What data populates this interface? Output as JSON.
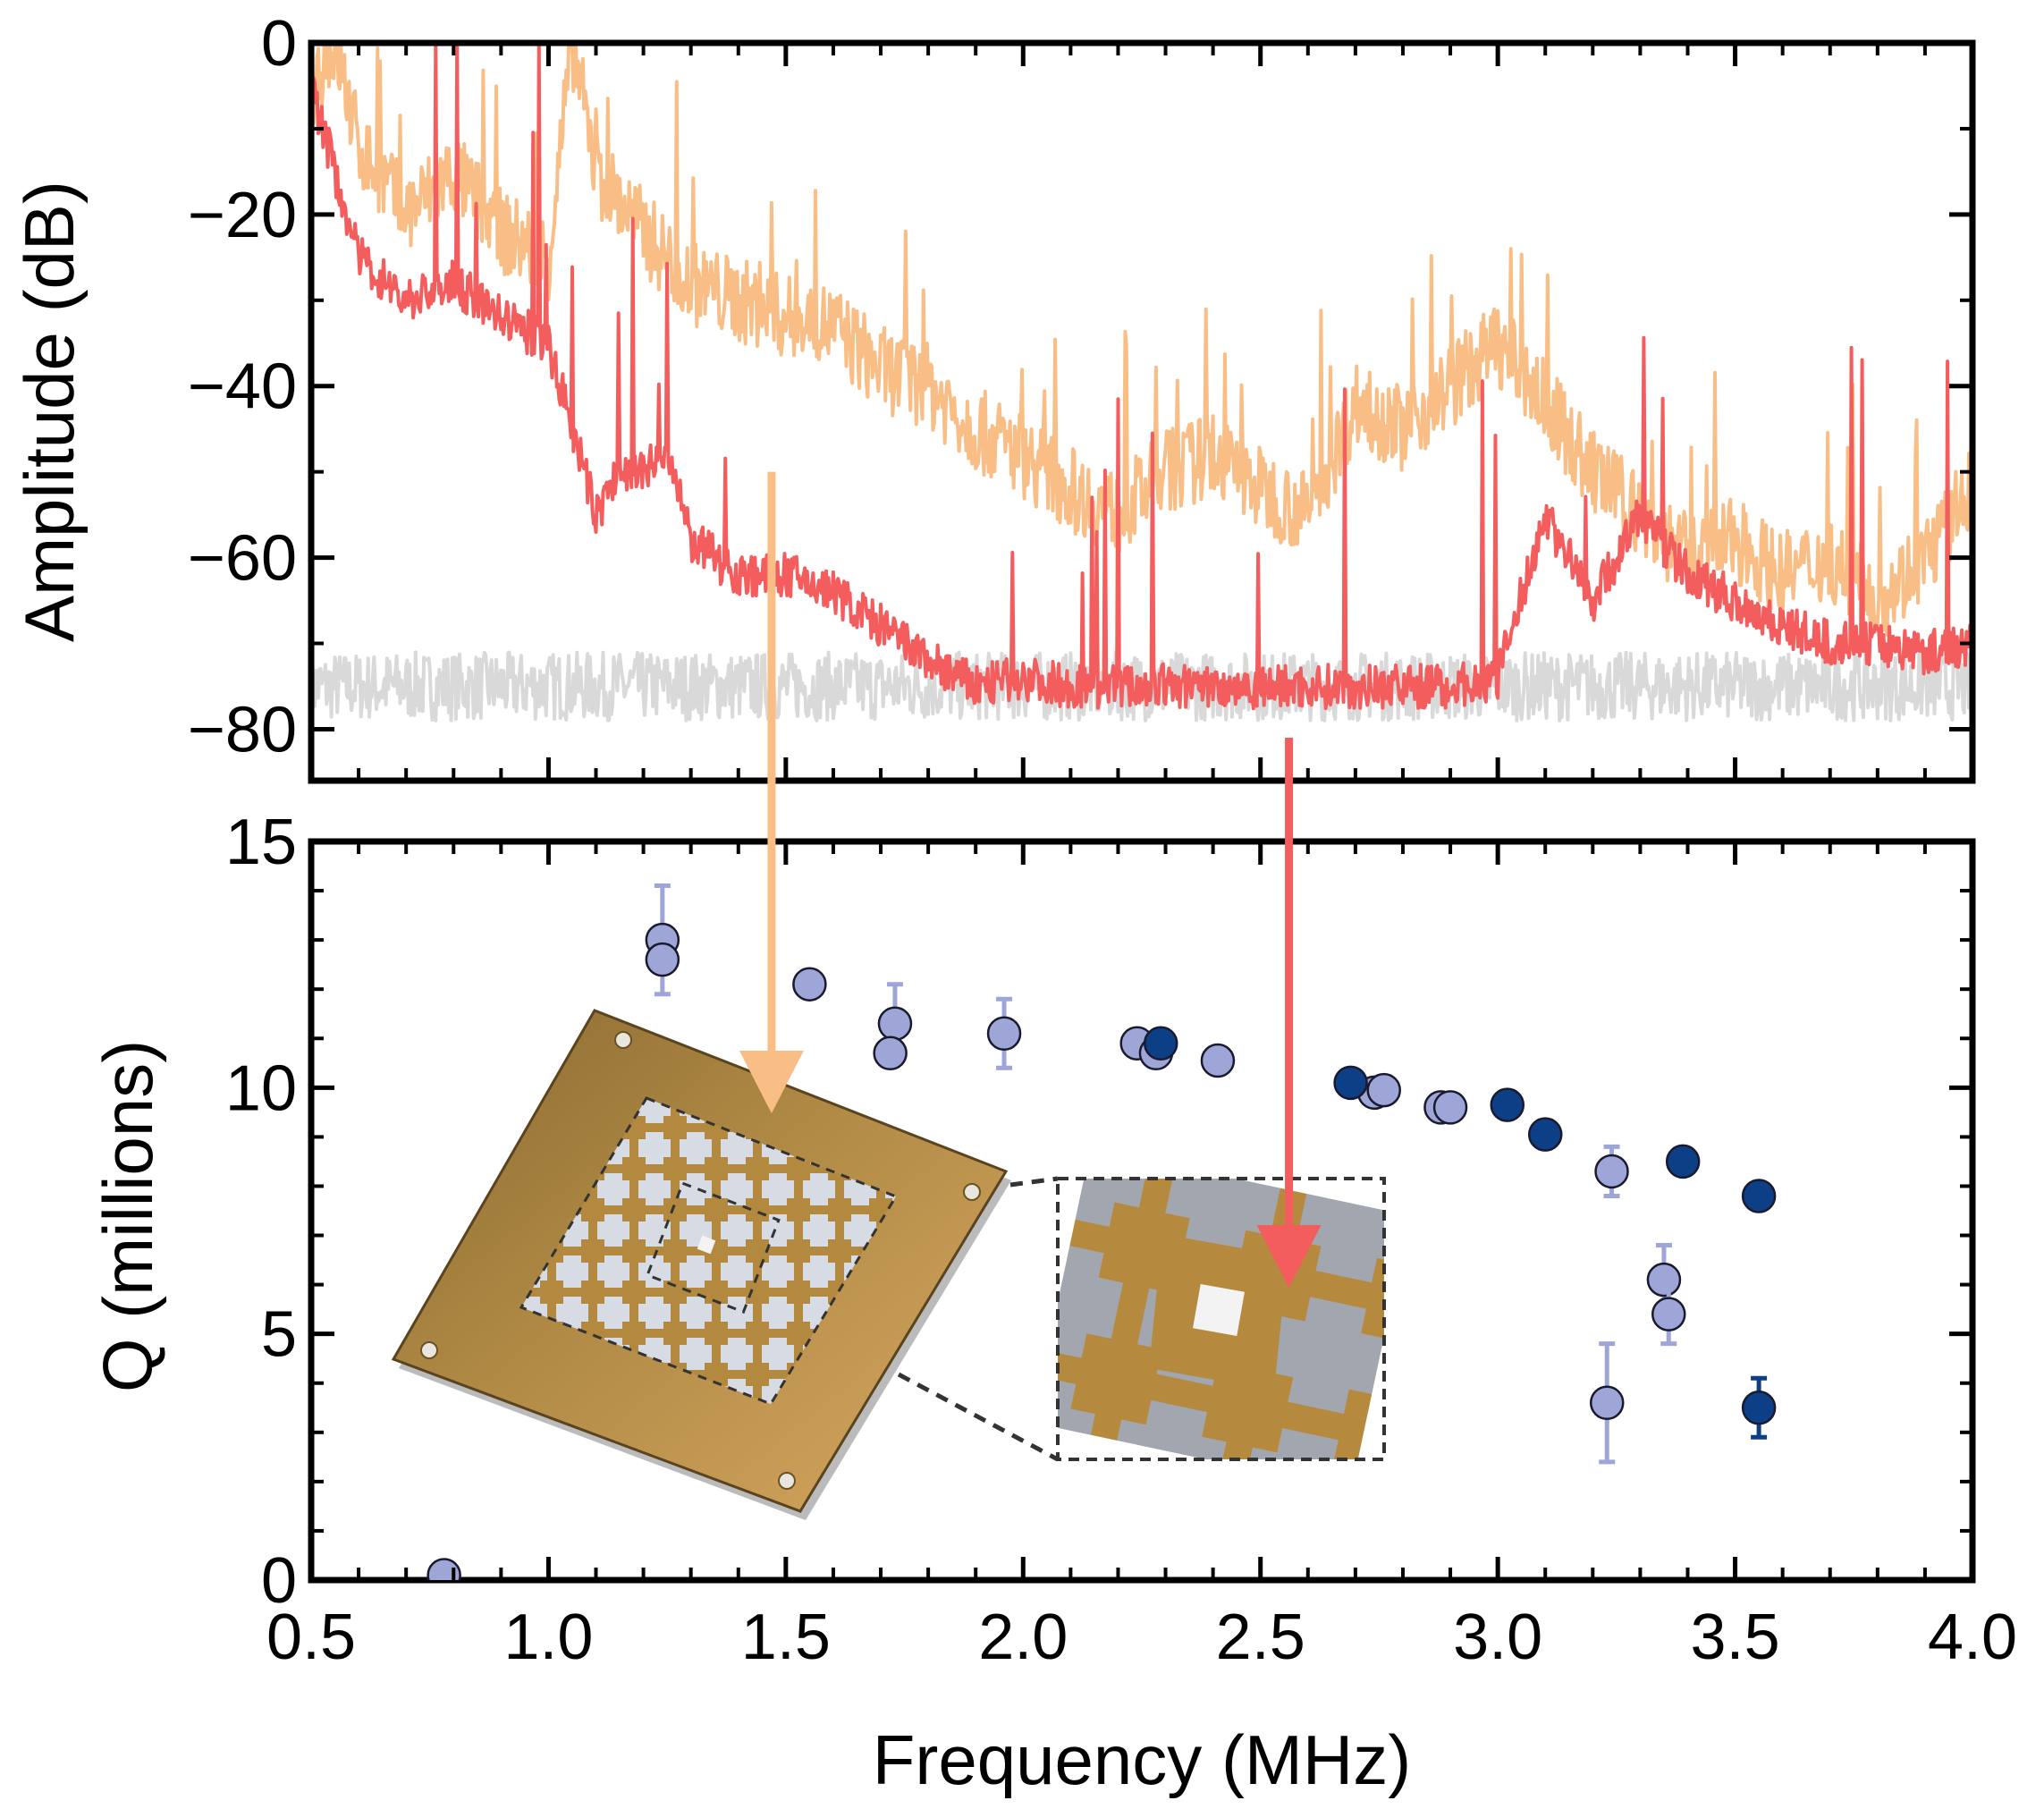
{
  "colors": {
    "spectrum_orange": "#f9be86",
    "spectrum_red": "#f45d5d",
    "noise_floor": "#d9d9d9",
    "q_light": "#9ea6d7",
    "q_dark": "#0d3f86",
    "chip_gold": "#b58a3e",
    "chip_frame": "#a67a32"
  },
  "chart_data": [
    {
      "type": "line",
      "panel": "top",
      "title": "",
      "ylabel": "Amplitude (dB)",
      "xlabel": "",
      "xlim": [
        0.5,
        4.0
      ],
      "ylim": [
        -86,
        0
      ],
      "yticks": [
        0,
        -20,
        -40,
        -60,
        -80
      ],
      "ytick_labels": [
        "0",
        "−20",
        "−40",
        "−60",
        "−80"
      ],
      "grid": false,
      "series": [
        {
          "color": "#d9d9d9",
          "x": [
            0.5,
            1.0,
            1.5,
            2.0,
            2.5,
            3.0,
            3.5,
            4.0
          ],
          "y": [
            -75,
            -75,
            -75,
            -75,
            -75,
            -75,
            -75,
            -75
          ]
        },
        {
          "color": "#f9be86",
          "x": [
            0.5,
            0.55,
            0.6,
            0.7,
            0.8,
            0.9,
            1.0,
            1.05,
            1.1,
            1.2,
            1.3,
            1.4,
            1.5,
            1.6,
            1.7,
            1.8,
            1.9,
            2.0,
            2.1,
            2.2,
            2.3,
            2.4,
            2.5,
            2.6,
            2.7,
            2.8,
            2.9,
            3.0,
            3.1,
            3.2,
            3.3,
            3.4,
            3.5,
            3.6,
            3.7,
            3.8,
            3.9,
            4.0
          ],
          "y": [
            -5,
            0,
            -12,
            -20,
            -15,
            -22,
            -25,
            0,
            -15,
            -22,
            -28,
            -30,
            -32,
            -33,
            -38,
            -40,
            -45,
            -48,
            -52,
            -55,
            -50,
            -48,
            -52,
            -55,
            -42,
            -45,
            -40,
            -35,
            -42,
            -50,
            -55,
            -60,
            -58,
            -62,
            -60,
            -65,
            -60,
            -52
          ]
        },
        {
          "color": "#f45d5d",
          "x": [
            0.5,
            0.55,
            0.6,
            0.7,
            0.8,
            0.9,
            1.0,
            1.1,
            1.15,
            1.2,
            1.25,
            1.3,
            1.4,
            1.5,
            1.6,
            1.7,
            1.8,
            1.9,
            2.0,
            2.1,
            2.2,
            2.3,
            2.4,
            2.5,
            2.6,
            2.7,
            2.8,
            2.9,
            3.0,
            3.1,
            3.2,
            3.3,
            3.4,
            3.5,
            3.6,
            3.7,
            3.8,
            3.9,
            4.0
          ],
          "y": [
            -5,
            -15,
            -25,
            -30,
            -28,
            -32,
            -35,
            -55,
            -50,
            -50,
            -48,
            -58,
            -62,
            -62,
            -64,
            -68,
            -72,
            -75,
            -74,
            -75,
            -75,
            -75,
            -75,
            -75,
            -75,
            -75,
            -75,
            -75,
            -74,
            -55,
            -65,
            -55,
            -62,
            -65,
            -68,
            -70,
            -70,
            -71,
            -70
          ]
        }
      ]
    },
    {
      "type": "scatter",
      "panel": "bottom",
      "title": "",
      "xlabel": "Frequency (MHz)",
      "ylabel": "Q (millions)",
      "xlim": [
        0.5,
        4.0
      ],
      "ylim": [
        0,
        15
      ],
      "xticks": [
        0.5,
        1.0,
        1.5,
        2.0,
        2.5,
        3.0,
        3.5,
        4.0
      ],
      "xtick_labels": [
        "0.5",
        "1.0",
        "1.5",
        "2.0",
        "2.5",
        "3.0",
        "3.5",
        "4.0"
      ],
      "yticks": [
        0,
        5,
        10,
        15
      ],
      "ytick_labels": [
        "0",
        "5",
        "10",
        "15"
      ],
      "grid": false,
      "series": [
        {
          "color": "#9ea6d7",
          "points": [
            {
              "x": 0.78,
              "y": 0.1
            },
            {
              "x": 1.24,
              "y": 13.0,
              "err": 1.1
            },
            {
              "x": 1.24,
              "y": 12.6
            },
            {
              "x": 1.55,
              "y": 12.1
            },
            {
              "x": 1.73,
              "y": 11.3,
              "err": 0.8
            },
            {
              "x": 1.72,
              "y": 10.7
            },
            {
              "x": 1.96,
              "y": 11.1,
              "err": 0.7
            },
            {
              "x": 2.24,
              "y": 10.9
            },
            {
              "x": 2.28,
              "y": 10.7
            },
            {
              "x": 2.41,
              "y": 10.55
            },
            {
              "x": 2.74,
              "y": 9.9
            },
            {
              "x": 2.76,
              "y": 9.95
            },
            {
              "x": 2.88,
              "y": 9.6
            },
            {
              "x": 2.9,
              "y": 9.6
            },
            {
              "x": 3.24,
              "y": 8.3,
              "err": 0.5
            },
            {
              "x": 3.35,
              "y": 6.1,
              "err": 0.7
            },
            {
              "x": 3.36,
              "y": 5.4,
              "err": 0.6
            },
            {
              "x": 3.23,
              "y": 3.6,
              "err": 1.2
            }
          ]
        },
        {
          "color": "#0d3f86",
          "points": [
            {
              "x": 2.29,
              "y": 10.9
            },
            {
              "x": 2.69,
              "y": 10.1
            },
            {
              "x": 3.02,
              "y": 9.65
            },
            {
              "x": 3.1,
              "y": 9.05
            },
            {
              "x": 3.39,
              "y": 8.5
            },
            {
              "x": 3.55,
              "y": 7.8
            },
            {
              "x": 3.55,
              "y": 3.5,
              "err": 0.6
            }
          ]
        }
      ]
    }
  ],
  "arrows": [
    {
      "color": "#f9be86",
      "x": 1.47
    },
    {
      "color": "#f45d5d",
      "x": 2.56
    }
  ]
}
